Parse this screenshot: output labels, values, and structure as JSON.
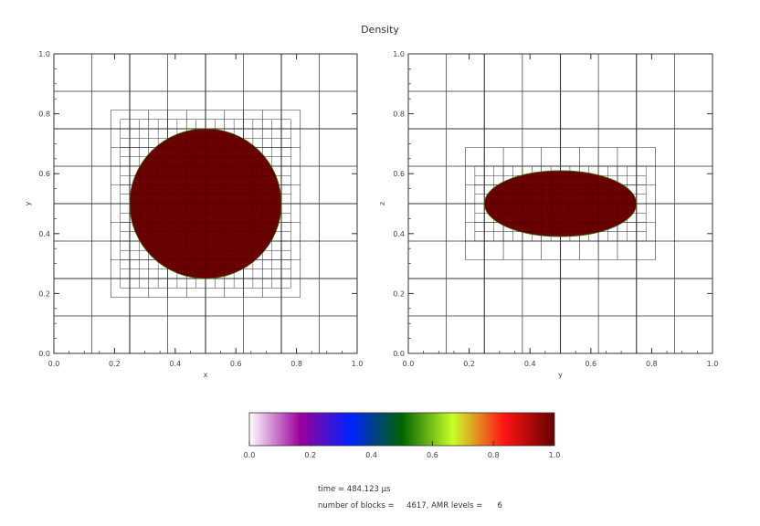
{
  "title": "Density",
  "footer": {
    "time_line": "time = 484.123 µs",
    "blocks_line": "number of blocks =     4617, AMR levels =      6"
  },
  "chart_data": [
    {
      "type": "heatmap",
      "panel": "left",
      "xlabel": "x",
      "ylabel": "y",
      "xlim": [
        0.0,
        1.0
      ],
      "ylim": [
        0.0,
        1.0
      ],
      "xticks": [
        "0.0",
        "0.2",
        "0.4",
        "0.6",
        "0.8",
        "1.0"
      ],
      "yticks": [
        "0.0",
        "0.2",
        "0.4",
        "0.6",
        "0.8",
        "1.0"
      ],
      "shape": {
        "kind": "circle",
        "center": [
          0.5,
          0.5
        ],
        "radius_x": 0.25,
        "radius_y": 0.25,
        "value": 1.0
      },
      "amr_grid": true
    },
    {
      "type": "heatmap",
      "panel": "right",
      "xlabel": "y",
      "ylabel": "z",
      "xlim": [
        0.0,
        1.0
      ],
      "ylim": [
        0.0,
        1.0
      ],
      "xticks": [
        "0.0",
        "0.2",
        "0.4",
        "0.6",
        "0.8",
        "1.0"
      ],
      "yticks": [
        "0.0",
        "0.2",
        "0.4",
        "0.6",
        "0.8",
        "1.0"
      ],
      "shape": {
        "kind": "ellipse",
        "center": [
          0.5,
          0.5
        ],
        "radius_x": 0.25,
        "radius_y": 0.11,
        "value": 1.0
      },
      "amr_grid": true
    }
  ],
  "colorbar": {
    "min": 0.0,
    "max": 1.0,
    "ticks": [
      "0.0",
      "0.2",
      "0.4",
      "0.6",
      "0.8",
      "1.0"
    ],
    "colors": [
      "#ffffff",
      "#9b009b",
      "#0022ff",
      "#006400",
      "#c8ff28",
      "#ff1414",
      "#640000"
    ],
    "fill_color": "#6b0000",
    "grid_color": "#333333"
  }
}
